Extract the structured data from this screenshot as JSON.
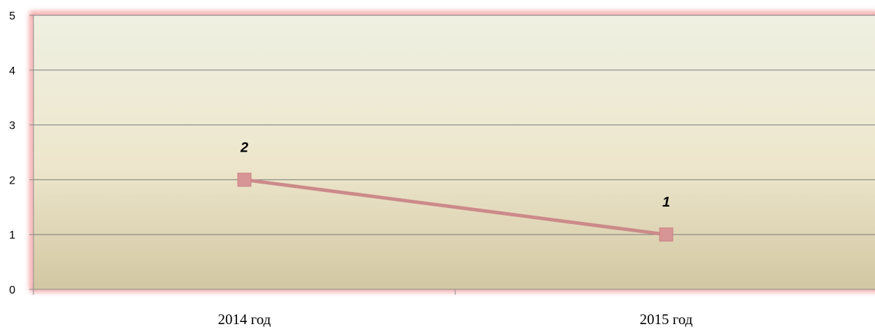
{
  "chart_data": {
    "type": "line",
    "title": "",
    "xlabel": "",
    "ylabel": "",
    "categories": [
      "2014 год",
      "2015 год"
    ],
    "series": [
      {
        "values": [
          2,
          1
        ],
        "data_labels": [
          "2",
          "1"
        ]
      }
    ],
    "ylim": [
      0,
      5
    ],
    "y_ticks": [
      "0",
      "1",
      "2",
      "3",
      "4",
      "5"
    ],
    "grid": true,
    "legend": "none",
    "marker": "square"
  },
  "colors": {
    "series_line": "#cc8a8a",
    "marker_fill": "#d89595",
    "marker_stroke": "#c98080",
    "plot_bg_top": "#eff0e2",
    "plot_bg_bottom": "#d2c7a2",
    "plot_glow": "#f08a8a",
    "gridline": "#7a7a7a"
  }
}
